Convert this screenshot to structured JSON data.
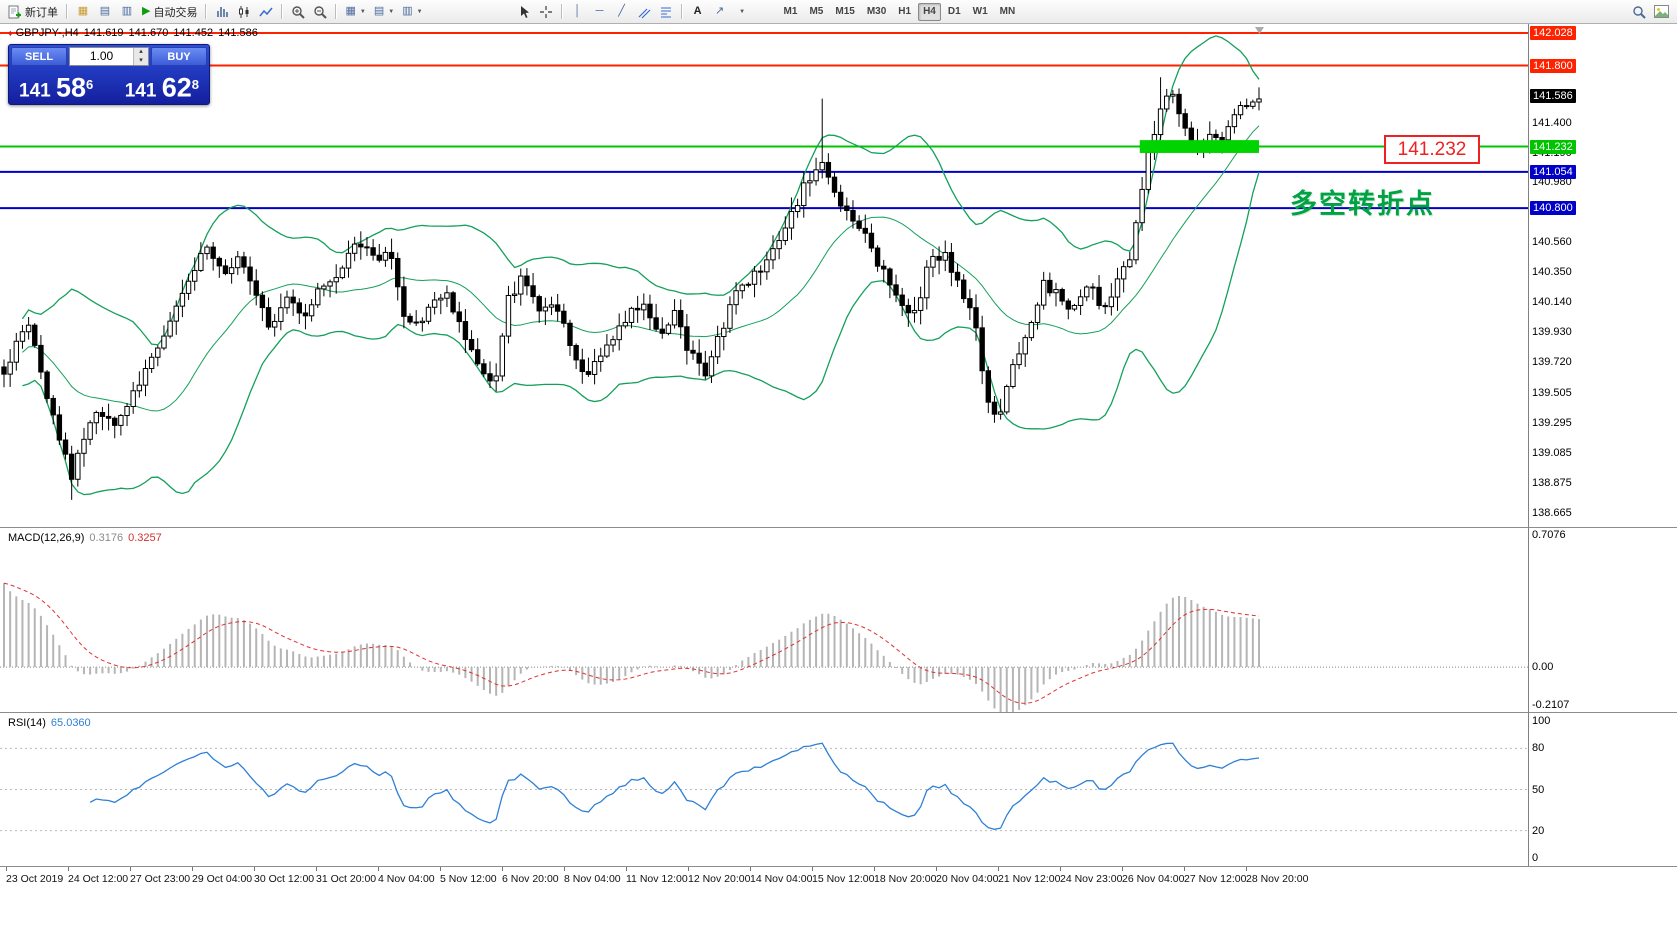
{
  "toolbar": {
    "new_order_label": "新订单",
    "autotrade_label": "自动交易",
    "timeframes": [
      "M1",
      "M5",
      "M15",
      "M30",
      "H1",
      "H4",
      "D1",
      "W1",
      "MN"
    ],
    "active_timeframe": "H4"
  },
  "trade_panel": {
    "sell_label": "SELL",
    "buy_label": "BUY",
    "volume": "1.00",
    "sell_price": {
      "prefix": "141",
      "big": "58",
      "sup": "6"
    },
    "buy_price": {
      "prefix": "141",
      "big": "62",
      "sup": "8"
    }
  },
  "chart_header": {
    "symbol_period": "GBPJPY-,H4",
    "open": "141.619",
    "high": "141.670",
    "low": "141.452",
    "close": "141.586"
  },
  "annotations": {
    "level_callout": "141.232",
    "note_cn": "多空转折点"
  },
  "chart_data": {
    "type": "candlestick",
    "symbol": "GBPJPY-",
    "timeframe": "H4",
    "price_range": {
      "max": 142.07,
      "min": 138.6
    },
    "price_ticks": [
      "141.400",
      "141.190",
      "140.980",
      "140.770",
      "140.560",
      "140.350",
      "140.140",
      "139.930",
      "139.720",
      "139.505",
      "139.295",
      "139.085",
      "138.875",
      "138.665"
    ],
    "level_lines": [
      {
        "price": 142.028,
        "label": "142.028",
        "color": "#ff2200",
        "width": 2
      },
      {
        "price": 141.8,
        "label": "141.800",
        "color": "#ff2200",
        "width": 2
      },
      {
        "price": 141.232,
        "label": "141.232",
        "color": "#00c400",
        "width": 2
      },
      {
        "price": 141.054,
        "label": "141.054",
        "color": "#0000c8",
        "width": 2
      },
      {
        "price": 140.8,
        "label": "140.800",
        "color": "#0000c8",
        "width": 2
      }
    ],
    "last_price": {
      "price": 141.586,
      "label": "141.586",
      "color": "#000000"
    },
    "highlight_zone": {
      "price": 141.232,
      "half_height": 0.045,
      "x_start_frac": 0.905,
      "x_end_frac": 1.0,
      "color": "#00d400"
    },
    "bands": {
      "period": 20,
      "deviation": 2,
      "color": "#14a05a"
    },
    "candle_anchors": [
      [
        0.0,
        139.62
      ],
      [
        0.01,
        139.88
      ],
      [
        0.02,
        140.02
      ],
      [
        0.032,
        139.55
      ],
      [
        0.044,
        139.18
      ],
      [
        0.054,
        138.92
      ],
      [
        0.064,
        139.22
      ],
      [
        0.076,
        139.38
      ],
      [
        0.088,
        139.28
      ],
      [
        0.1,
        139.45
      ],
      [
        0.112,
        139.65
      ],
      [
        0.124,
        139.82
      ],
      [
        0.136,
        140.08
      ],
      [
        0.15,
        140.38
      ],
      [
        0.163,
        140.5
      ],
      [
        0.175,
        140.32
      ],
      [
        0.188,
        140.5
      ],
      [
        0.2,
        140.22
      ],
      [
        0.212,
        139.98
      ],
      [
        0.225,
        140.15
      ],
      [
        0.238,
        140.05
      ],
      [
        0.25,
        140.22
      ],
      [
        0.262,
        140.32
      ],
      [
        0.274,
        140.45
      ],
      [
        0.286,
        140.58
      ],
      [
        0.297,
        140.38
      ],
      [
        0.308,
        140.5
      ],
      [
        0.318,
        140.02
      ],
      [
        0.33,
        139.95
      ],
      [
        0.342,
        140.12
      ],
      [
        0.354,
        140.18
      ],
      [
        0.366,
        139.95
      ],
      [
        0.378,
        139.68
      ],
      [
        0.39,
        139.52
      ],
      [
        0.402,
        140.18
      ],
      [
        0.414,
        140.32
      ],
      [
        0.426,
        140.05
      ],
      [
        0.438,
        140.18
      ],
      [
        0.45,
        139.88
      ],
      [
        0.462,
        139.6
      ],
      [
        0.474,
        139.72
      ],
      [
        0.486,
        139.9
      ],
      [
        0.498,
        140.05
      ],
      [
        0.51,
        140.15
      ],
      [
        0.522,
        139.92
      ],
      [
        0.534,
        140.05
      ],
      [
        0.546,
        139.8
      ],
      [
        0.558,
        139.62
      ],
      [
        0.57,
        139.92
      ],
      [
        0.582,
        140.18
      ],
      [
        0.596,
        140.3
      ],
      [
        0.61,
        140.45
      ],
      [
        0.625,
        140.7
      ],
      [
        0.64,
        141.0
      ],
      [
        0.652,
        141.12
      ],
      [
        0.662,
        140.88
      ],
      [
        0.674,
        140.78
      ],
      [
        0.688,
        140.58
      ],
      [
        0.7,
        140.35
      ],
      [
        0.712,
        140.2
      ],
      [
        0.724,
        140.0
      ],
      [
        0.736,
        140.38
      ],
      [
        0.748,
        140.5
      ],
      [
        0.76,
        140.28
      ],
      [
        0.772,
        140.08
      ],
      [
        0.783,
        139.48
      ],
      [
        0.793,
        139.32
      ],
      [
        0.805,
        139.72
      ],
      [
        0.817,
        140.0
      ],
      [
        0.829,
        140.28
      ],
      [
        0.841,
        140.18
      ],
      [
        0.853,
        140.08
      ],
      [
        0.865,
        140.28
      ],
      [
        0.877,
        140.08
      ],
      [
        0.888,
        140.32
      ],
      [
        0.898,
        140.48
      ],
      [
        0.908,
        141.02
      ],
      [
        0.92,
        141.48
      ],
      [
        0.93,
        141.6
      ],
      [
        0.94,
        141.38
      ],
      [
        0.95,
        141.22
      ],
      [
        0.96,
        141.35
      ],
      [
        0.97,
        141.28
      ],
      [
        0.982,
        141.46
      ],
      [
        0.992,
        141.52
      ],
      [
        1.0,
        141.586
      ]
    ],
    "wick_boosts": [
      [
        0.054,
        "down",
        0.12
      ],
      [
        0.286,
        "up",
        0.06
      ],
      [
        0.652,
        "up",
        0.42
      ],
      [
        0.92,
        "up",
        0.16
      ]
    ],
    "time_labels": [
      "23 Oct 2019",
      "24 Oct 12:00",
      "27 Oct 23:00",
      "29 Oct 04:00",
      "30 Oct 12:00",
      "31 Oct 20:00",
      "4 Nov 04:00",
      "5 Nov 12:00",
      "6 Nov 20:00",
      "8 Nov 04:00",
      "11 Nov 12:00",
      "12 Nov 20:00",
      "14 Nov 04:00",
      "15 Nov 12:00",
      "18 Nov 20:00",
      "20 Nov 04:00",
      "21 Nov 12:00",
      "24 Nov 23:00",
      "26 Nov 04:00",
      "27 Nov 12:00",
      "28 Nov 20:00"
    ],
    "macd": {
      "label": "MACD(12,26,9)",
      "main_value": "0.3176",
      "signal_value": "0.3257",
      "scale_max": "0.7076",
      "scale_zero": "0.00",
      "scale_min": "-0.2107",
      "histogram_color": "#b5b5b5",
      "signal_color": "#e03030"
    },
    "rsi": {
      "label": "RSI(14)",
      "value": "65.0360",
      "levels": [
        "100",
        "80",
        "50",
        "20",
        "0"
      ],
      "line_color": "#2e7fd6"
    }
  }
}
